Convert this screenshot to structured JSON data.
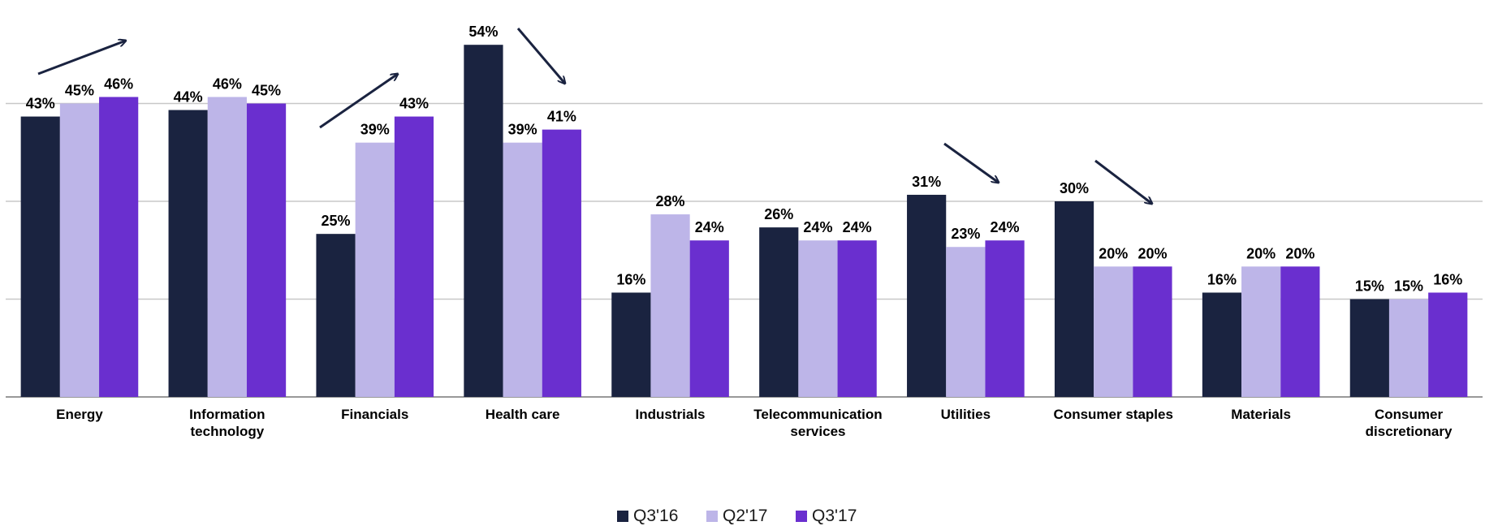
{
  "chart_data": {
    "type": "bar",
    "categories": [
      "Energy",
      "Information technology",
      "Financials",
      "Health care",
      "Industrials",
      "Telecommunication services",
      "Utilities",
      "Consumer staples",
      "Materials",
      "Consumer discretionary"
    ],
    "series": [
      {
        "name": "Q3'16",
        "color": "#1a2340",
        "values": [
          43,
          44,
          25,
          54,
          16,
          26,
          31,
          30,
          16,
          15
        ],
        "value_labels": [
          "43%",
          "44%",
          "25%",
          "54%",
          "16%",
          "26%",
          "31%",
          "30%",
          "16%",
          "15%"
        ]
      },
      {
        "name": "Q2'17",
        "color": "#bdb5e8",
        "values": [
          45,
          46,
          39,
          39,
          28,
          24,
          23,
          20,
          20,
          15
        ],
        "value_labels": [
          "45%",
          "46%",
          "39%",
          "39%",
          "28%",
          "24%",
          "23%",
          "20%",
          "20%",
          "15%"
        ]
      },
      {
        "name": "Q3'17",
        "color": "#6a2fcf",
        "values": [
          46,
          45,
          43,
          41,
          24,
          24,
          24,
          20,
          20,
          16
        ],
        "value_labels": [
          "46%",
          "45%",
          "43%",
          "41%",
          "24%",
          "24%",
          "24%",
          "20%",
          "20%",
          "16%"
        ]
      }
    ],
    "ylim": [
      0,
      60
    ],
    "yticks": [
      0,
      15,
      30,
      45
    ],
    "grid": true
  }
}
